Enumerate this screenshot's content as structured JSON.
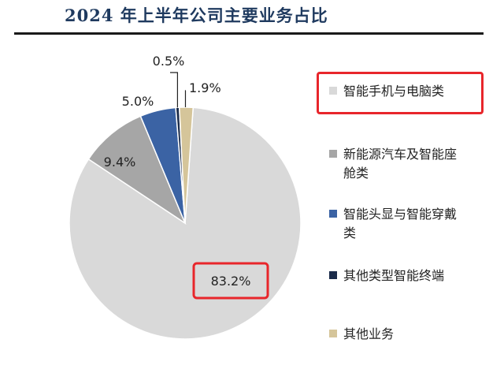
{
  "title": "2024 年上半年公司主要业务占比",
  "colors": {
    "title": "#1f3a5f",
    "highlight": "#e8262b"
  },
  "chart_data": {
    "type": "pie",
    "title": "2024 年上半年公司主要业务占比",
    "slices": [
      {
        "label": "智能手机与电脑类",
        "value": 83.2,
        "value_label": "83.2%",
        "color": "#d9d9d9"
      },
      {
        "label": "新能源汽车及智能座舱类",
        "value": 9.4,
        "value_label": "9.4%",
        "color": "#a6a6a6"
      },
      {
        "label": "智能头显与智能穿戴类",
        "value": 5.0,
        "value_label": "5.0%",
        "color": "#3b63a4"
      },
      {
        "label": "其他类型智能终端",
        "value": 0.5,
        "value_label": "0.5%",
        "color": "#1a2b4a"
      },
      {
        "label": "其他业务",
        "value": 1.9,
        "value_label": "1.9%",
        "color": "#d5c59a"
      }
    ],
    "legend_position": "right",
    "highlighted": [
      "智能手机与电脑类",
      "83.2%"
    ]
  }
}
